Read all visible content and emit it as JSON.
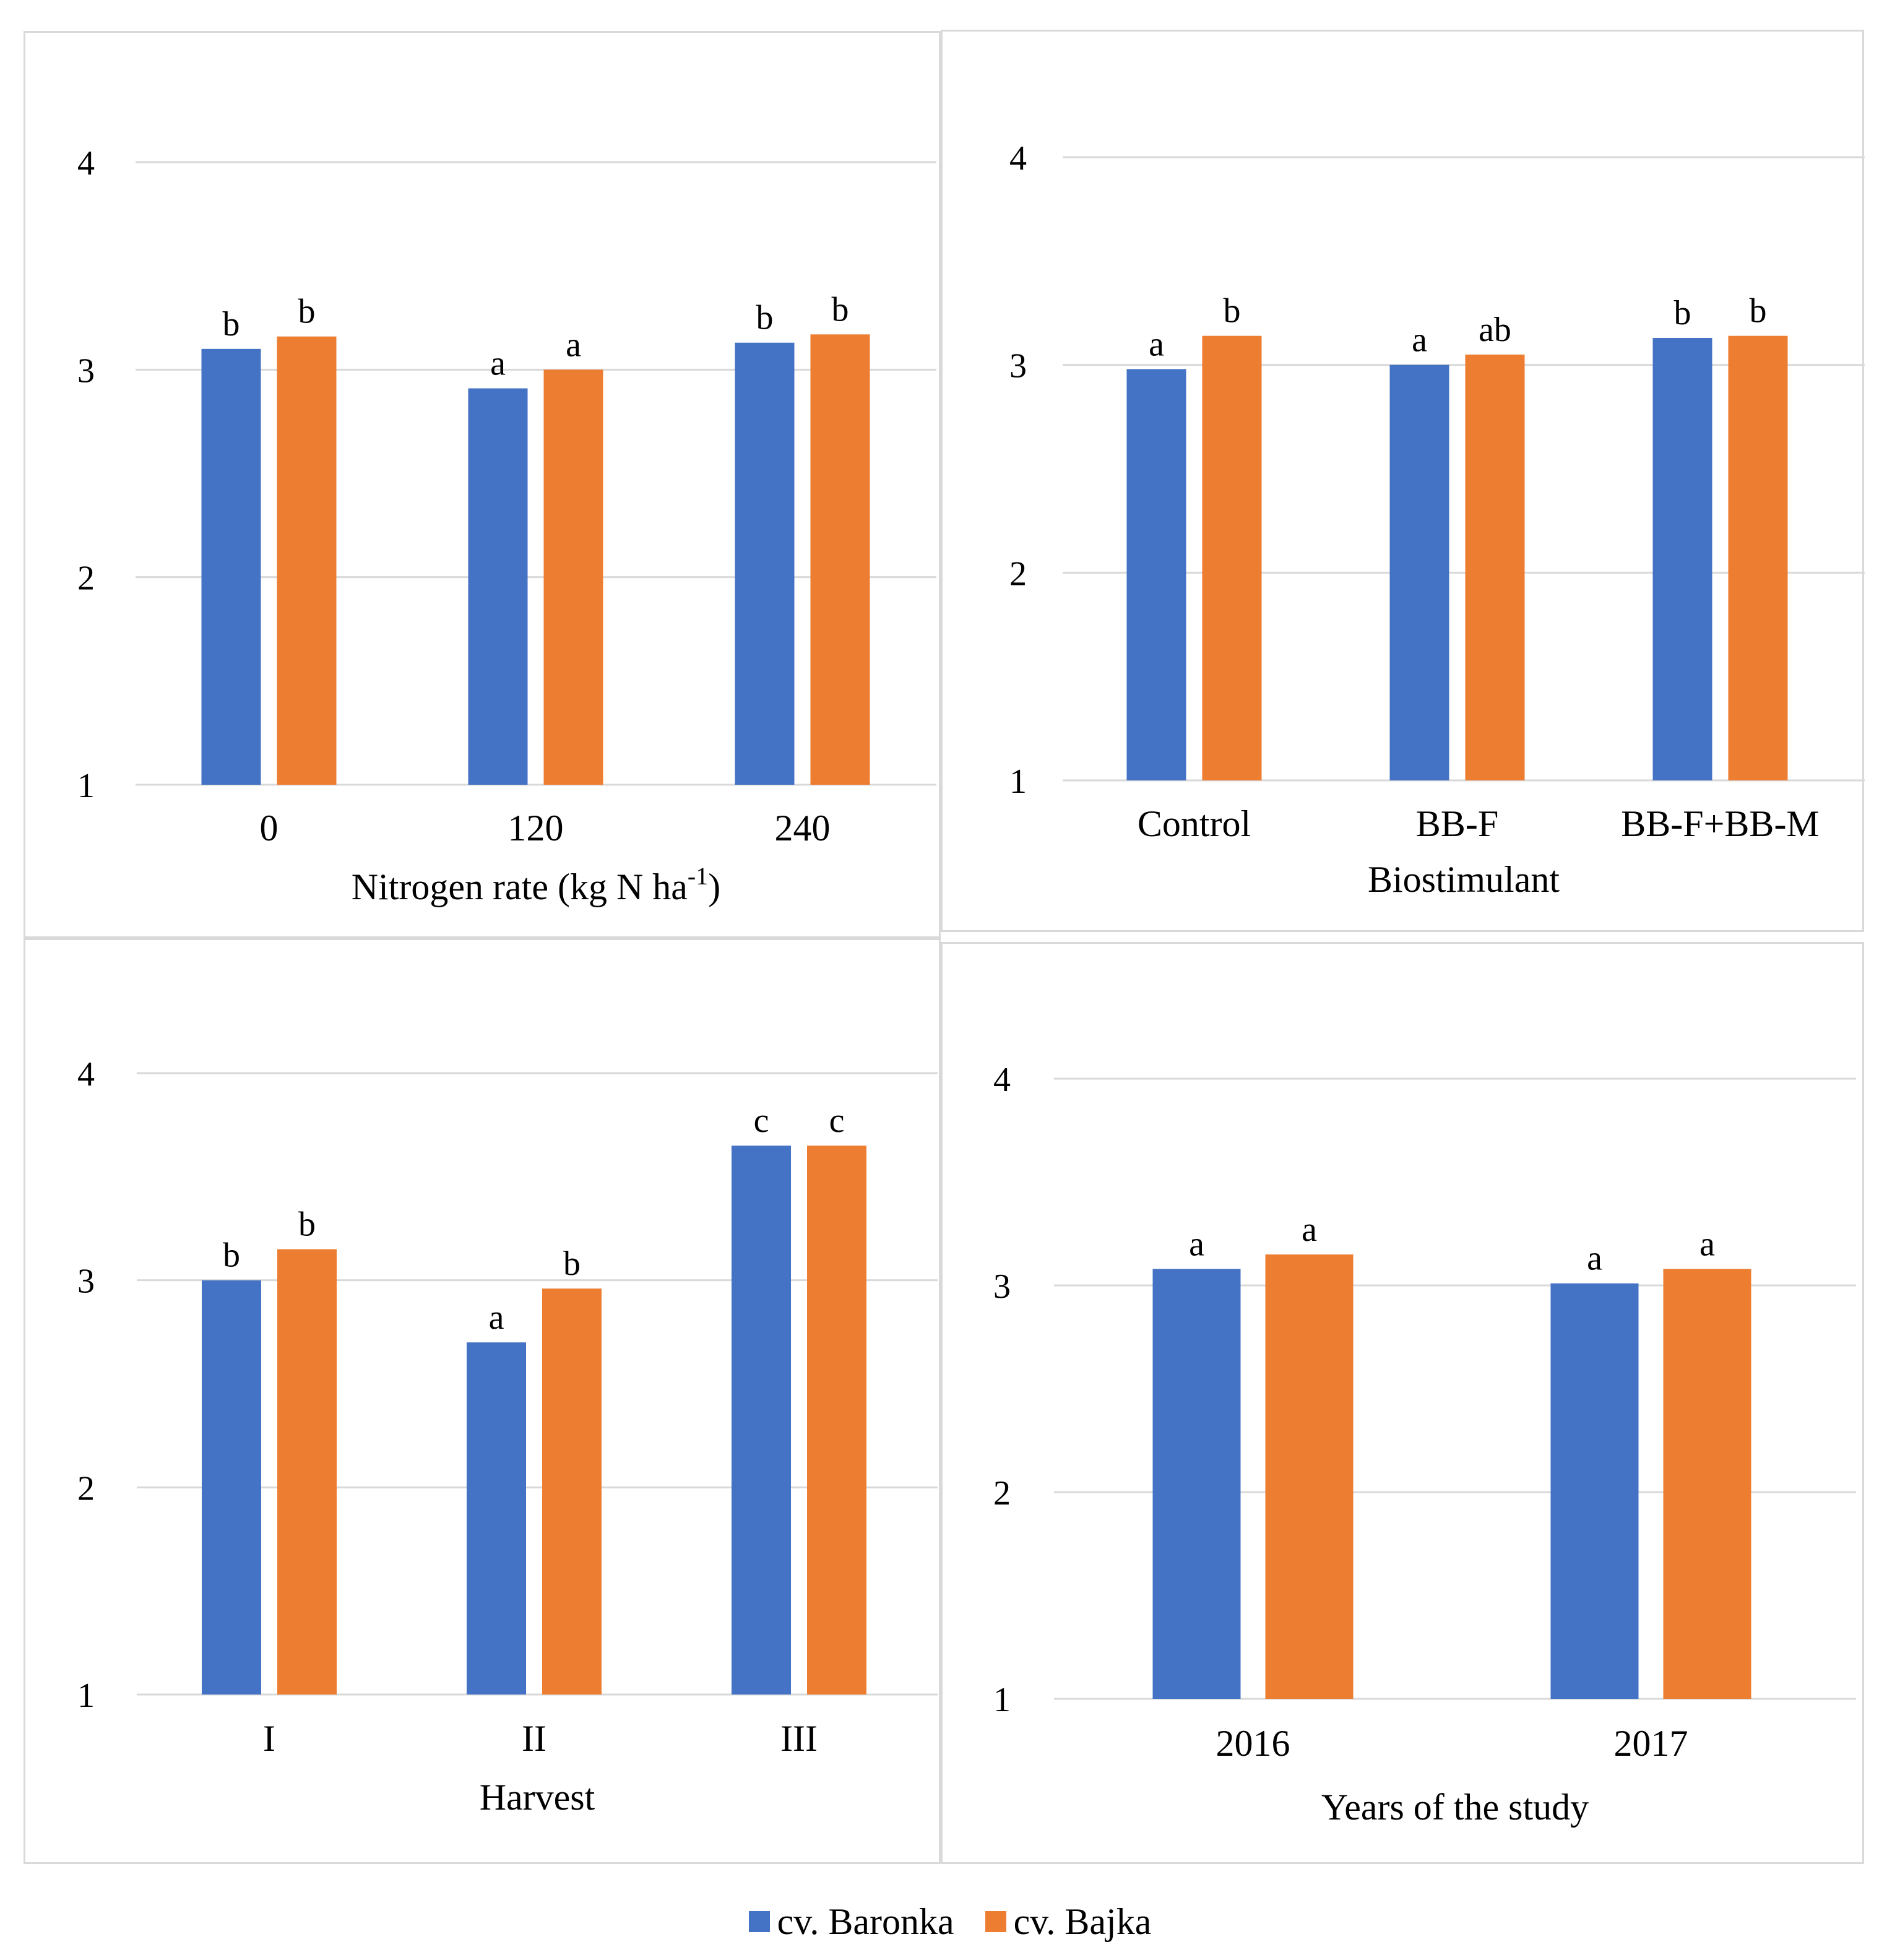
{
  "legend": [
    {
      "label": "cv. Baronka",
      "color": "#4472c4"
    },
    {
      "label": "cv. Bajka",
      "color": "#ed7d31"
    }
  ],
  "chart_data": [
    {
      "type": "bar",
      "xlabel": "Nitrogen rate (kg N ha-1)",
      "xlabel_main": "Nitrogen rate (kg N ha",
      "xlabel_sup": "-1",
      "xlabel_end": ")",
      "categories": [
        "0",
        "120",
        "240"
      ],
      "ylim": [
        1,
        4
      ],
      "yticks": [
        "1",
        "2",
        "3",
        "4"
      ],
      "series": [
        {
          "name": "cv. Baronka",
          "values": [
            3.1,
            2.91,
            3.13
          ],
          "labels": [
            "b",
            "a",
            "b"
          ]
        },
        {
          "name": "cv. Bajka",
          "values": [
            3.16,
            3.0,
            3.17
          ],
          "labels": [
            "b",
            "a",
            "b"
          ]
        }
      ]
    },
    {
      "type": "bar",
      "xlabel": "Biostimulant",
      "categories": [
        "Control",
        "BB-F",
        "BB-F+BB-M"
      ],
      "ylim": [
        1,
        4
      ],
      "yticks": [
        "1",
        "2",
        "3",
        "4"
      ],
      "series": [
        {
          "name": "cv. Baronka",
          "values": [
            2.98,
            3.0,
            3.13
          ],
          "labels": [
            "a",
            "a",
            "b"
          ]
        },
        {
          "name": "cv. Bajka",
          "values": [
            3.14,
            3.05,
            3.14
          ],
          "labels": [
            "b",
            "ab",
            "b"
          ]
        }
      ]
    },
    {
      "type": "bar",
      "xlabel": "Harvest",
      "categories": [
        "I",
        "II",
        "III"
      ],
      "ylim": [
        1,
        4
      ],
      "yticks": [
        "1",
        "2",
        "3",
        "4"
      ],
      "series": [
        {
          "name": "cv. Baronka",
          "values": [
            3.0,
            2.7,
            3.65
          ],
          "labels": [
            "b",
            "a",
            "c"
          ]
        },
        {
          "name": "cv. Bajka",
          "values": [
            3.15,
            2.96,
            3.65
          ],
          "labels": [
            "b",
            "b",
            "c"
          ]
        }
      ]
    },
    {
      "type": "bar",
      "xlabel": "Years of the study",
      "categories": [
        "2016",
        "2017"
      ],
      "ylim": [
        1,
        4
      ],
      "yticks": [
        "1",
        "2",
        "3",
        "4"
      ],
      "series": [
        {
          "name": "cv. Baronka",
          "values": [
            3.08,
            3.01
          ],
          "labels": [
            "a",
            "a"
          ]
        },
        {
          "name": "cv. Bajka",
          "values": [
            3.15,
            3.08
          ],
          "labels": [
            "a",
            "a"
          ]
        }
      ]
    }
  ]
}
